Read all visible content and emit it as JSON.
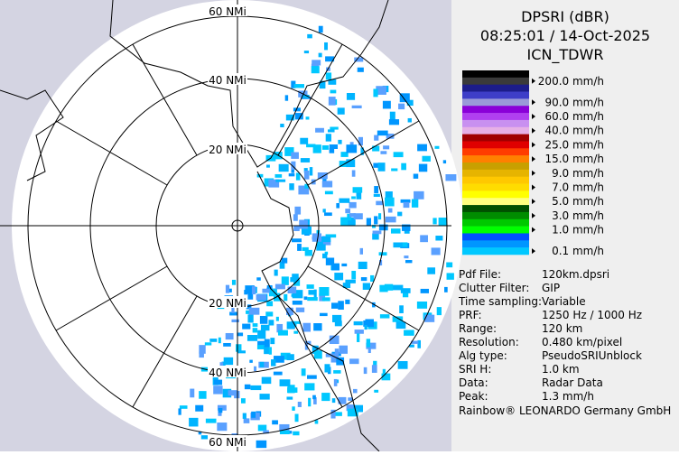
{
  "header": {
    "lines": [
      "DPSRI (dBR)",
      "08:25:01 / 14-Oct-2025",
      "ICN_TDWR"
    ]
  },
  "range_labels": [
    "60 NMi",
    "40 NMi",
    "20 NMi",
    "20 NMi",
    "40 NMi",
    "60 NMi"
  ],
  "legend": [
    {
      "label": "200.0 mm/h",
      "colors": [
        "#000000",
        "#3a3a3a"
      ]
    },
    {
      "label": "90.0 mm/h",
      "colors": [
        "#1c1c8a",
        "#3e3ec8",
        "#9a9ad8"
      ]
    },
    {
      "label": "60.0 mm/h",
      "colors": [
        "#8a00d8",
        "#b040f0"
      ]
    },
    {
      "label": "40.0 mm/h",
      "colors": [
        "#c890f0",
        "#e6b0e6"
      ]
    },
    {
      "label": "25.0 mm/h",
      "colors": [
        "#a00000",
        "#e00000"
      ]
    },
    {
      "label": "15.0 mm/h",
      "colors": [
        "#ff3c00",
        "#ff8000"
      ]
    },
    {
      "label": "9.0 mm/h",
      "colors": [
        "#c8a000",
        "#e6b400"
      ]
    },
    {
      "label": "7.0 mm/h",
      "colors": [
        "#ffc800",
        "#ffdc00"
      ]
    },
    {
      "label": "5.0 mm/h",
      "colors": [
        "#ffff00",
        "#ffff80"
      ]
    },
    {
      "label": "3.0 mm/h",
      "colors": [
        "#005000",
        "#008c00"
      ]
    },
    {
      "label": "1.0 mm/h",
      "colors": [
        "#00c800",
        "#00ff00"
      ]
    },
    {
      "label": "0.1 mm/h",
      "colors": [
        "#0050ff",
        "#0096ff",
        "#00c8ff"
      ]
    }
  ],
  "info": [
    [
      "Pdf File:",
      "120km.dpsri"
    ],
    [
      "Clutter Filter:",
      "GIP"
    ],
    [
      "Time sampling:",
      "Variable"
    ],
    [
      "PRF:",
      "1250 Hz / 1000 Hz"
    ],
    [
      "Range:",
      "120 km"
    ],
    [
      "Resolution:",
      "0.480 km/pixel"
    ],
    [
      "Alg type:",
      "PseudoSRIUnblock"
    ],
    [
      "SRI H:",
      "1.0 km"
    ],
    [
      "Data:",
      "Radar Data"
    ],
    [
      "Peak:",
      "1.3 mm/h"
    ]
  ],
  "footer": "Rainbow® LEONARDO Germany GmbH"
}
